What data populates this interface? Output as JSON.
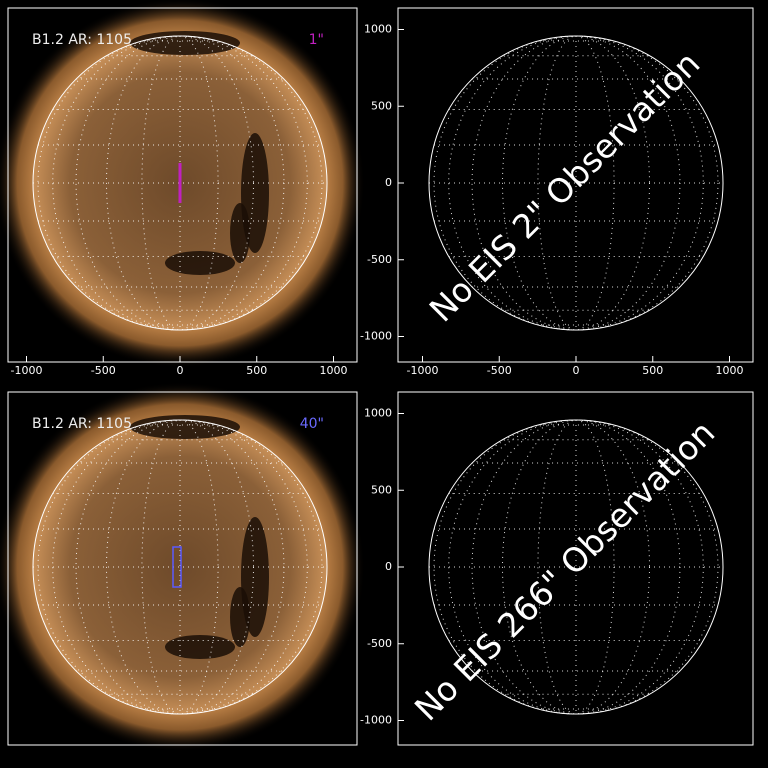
{
  "panels": [
    {
      "label": "B1.2 AR: 1105",
      "slit_label": "1\"",
      "xticks": [
        -1000,
        -500,
        0,
        500,
        1000
      ]
    },
    {
      "message": "No EIS 2\" Observation",
      "xticks": [
        -1000,
        -500,
        0,
        500,
        1000
      ],
      "yticks": [
        1000,
        500,
        0,
        -500,
        -1000
      ]
    },
    {
      "label": "B1.2 AR: 1105",
      "slit_label": "40\""
    },
    {
      "message": "No EIS 266\" Observation",
      "yticks": [
        1000,
        500,
        0,
        -500,
        -1000
      ]
    }
  ]
}
